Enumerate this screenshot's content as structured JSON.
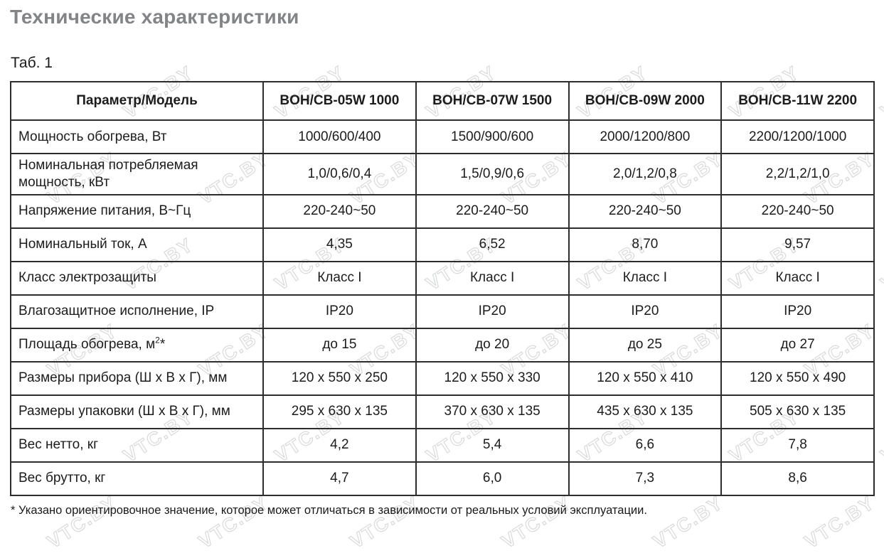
{
  "page": {
    "title": "Технические характеристики",
    "table_caption": "Таб. 1",
    "footnote": "* Указано ориентировочное значение, которое может отличаться в зависимости от реальных условий эксплуатации.",
    "watermark_text": "VTC.BY"
  },
  "table": {
    "columns": [
      "Параметр/Модель",
      "BOH/CB-05W 1000",
      "BOH/CB-07W 1500",
      "BOH/CB-09W 2000",
      "BOH/CB-11W 2200"
    ],
    "rows": [
      {
        "param": "Мощность обогрева, Вт",
        "values": [
          "1000/600/400",
          "1500/900/600",
          "2000/1200/800",
          "2200/1200/1000"
        ]
      },
      {
        "param": "Номинальная потребляемая мощность, кВт",
        "values": [
          "1,0/0,6/0,4",
          "1,5/0,9/0,6",
          "2,0/1,2/0,8",
          "2,2/1,2/1,0"
        ]
      },
      {
        "param": "Напряжение питания, В~Гц",
        "values": [
          "220-240~50",
          "220-240~50",
          "220-240~50",
          "220-240~50"
        ]
      },
      {
        "param": "Номинальный ток, А",
        "values": [
          "4,35",
          "6,52",
          "8,70",
          "9,57"
        ]
      },
      {
        "param": "Класс электрозащиты",
        "values": [
          "Класс I",
          "Класс I",
          "Класс I",
          "Класс I"
        ]
      },
      {
        "param": "Влагозащитное исполнение, IP",
        "values": [
          "IP20",
          "IP20",
          "IP20",
          "IP20"
        ]
      },
      {
        "param": "Площадь обогрева, м",
        "param_sup": "2",
        "param_suffix": "*",
        "values": [
          "до 15",
          "до 20",
          "до 25",
          "до 27"
        ]
      },
      {
        "param": "Размеры прибора (Ш х В х Г), мм",
        "values": [
          "120 x 550 x 250",
          "120 x 550 x 330",
          "120 x 550 x 410",
          "120 x 550 x 490"
        ]
      },
      {
        "param": "Размеры упаковки (Ш х В х Г), мм",
        "values": [
          "295 x 630 x 135",
          "370 x 630 x 135",
          "435 x 630 x 135",
          "505 x 630 x 135"
        ]
      },
      {
        "param": "Вес нетто, кг",
        "values": [
          "4,2",
          "5,4",
          "6,6",
          "7,8"
        ]
      },
      {
        "param": "Вес брутто, кг",
        "values": [
          "4,7",
          "6,0",
          "7,3",
          "8,6"
        ]
      }
    ]
  },
  "colors": {
    "title_gray": "#828487",
    "table_border": "#2d2d2d",
    "text": "#1c1c1c",
    "watermark": "#d8dadc"
  }
}
